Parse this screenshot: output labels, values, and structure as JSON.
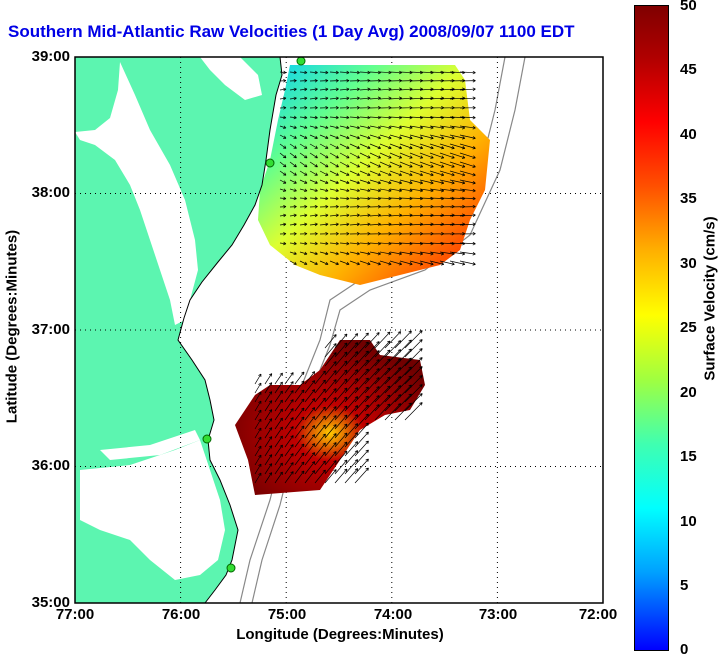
{
  "title": "Southern Mid-Atlantic Raw Velocities (1 Day Avg) 2008/09/07 1100 EDT",
  "axes": {
    "xlabel": "Longitude (Degrees:Minutes)",
    "ylabel": "Latitude (Degrees:Minutes)",
    "xticks": [
      "77:00",
      "76:00",
      "75:00",
      "74:00",
      "73:00",
      "72:00"
    ],
    "yticks": [
      "39:00",
      "38:00",
      "37:00",
      "36:00",
      "35:00"
    ],
    "xlim": [
      -77,
      -72
    ],
    "ylim": [
      35,
      39
    ],
    "grid": "dotted"
  },
  "colorbar": {
    "label": "Surface Velocity (cm/s)",
    "ticks": [
      "50",
      "45",
      "40",
      "35",
      "30",
      "25",
      "20",
      "15",
      "10",
      "5",
      "0"
    ],
    "range": [
      0,
      50
    ],
    "colors": [
      "#0000ff",
      "#00ffff",
      "#ffff00",
      "#ff0000",
      "#800000"
    ]
  },
  "colors": {
    "land": "#5cf5b0",
    "ocean": "#ffffff",
    "title": "#0000e6",
    "bathymetry": "#888888",
    "station": "#33dd33"
  }
}
